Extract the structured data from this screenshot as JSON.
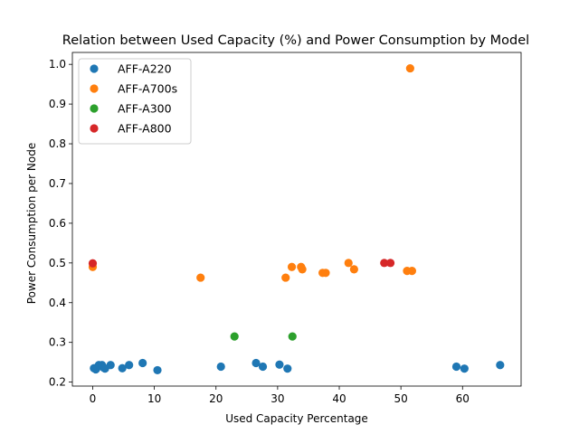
{
  "chart_data": {
    "type": "scatter",
    "title": "Relation between Used Capacity (%) and Power Consumption by Model",
    "xlabel": "Used Capacity Percentage",
    "ylabel": "Power Consumption per Node",
    "xlim": [
      -3.3,
      69.5
    ],
    "ylim": [
      0.19,
      1.03
    ],
    "xticks": [
      0,
      10,
      20,
      30,
      40,
      50,
      60
    ],
    "yticks": [
      0.2,
      0.3,
      0.4,
      0.5,
      0.6,
      0.7,
      0.8,
      0.9,
      1.0
    ],
    "grid": false,
    "legend_position": "top-left",
    "series": [
      {
        "name": "AFF-A220",
        "color": "#1f77b4",
        "points": [
          [
            0.2,
            0.235
          ],
          [
            0.5,
            0.232
          ],
          [
            0.8,
            0.238
          ],
          [
            1.0,
            0.243
          ],
          [
            1.5,
            0.243
          ],
          [
            1.8,
            0.236
          ],
          [
            2.0,
            0.234
          ],
          [
            2.9,
            0.243
          ],
          [
            4.8,
            0.235
          ],
          [
            5.9,
            0.243
          ],
          [
            8.1,
            0.248
          ],
          [
            10.5,
            0.23
          ],
          [
            20.8,
            0.239
          ],
          [
            26.5,
            0.248
          ],
          [
            27.6,
            0.239
          ],
          [
            30.3,
            0.244
          ],
          [
            31.6,
            0.234
          ],
          [
            59.0,
            0.239
          ],
          [
            60.3,
            0.234
          ],
          [
            66.1,
            0.243
          ]
        ]
      },
      {
        "name": "AFF-A700s",
        "color": "#ff7f0e",
        "points": [
          [
            0.0,
            0.49
          ],
          [
            17.5,
            0.463
          ],
          [
            31.3,
            0.463
          ],
          [
            32.3,
            0.49
          ],
          [
            33.8,
            0.49
          ],
          [
            34.0,
            0.484
          ],
          [
            37.3,
            0.475
          ],
          [
            37.8,
            0.475
          ],
          [
            41.5,
            0.5
          ],
          [
            42.4,
            0.484
          ],
          [
            51.0,
            0.48
          ],
          [
            51.8,
            0.48
          ],
          [
            51.5,
            0.99
          ]
        ]
      },
      {
        "name": "AFF-A300",
        "color": "#2ca02c",
        "points": [
          [
            23.0,
            0.315
          ],
          [
            32.4,
            0.315
          ]
        ]
      },
      {
        "name": "AFF-A800",
        "color": "#d62728",
        "points": [
          [
            0.0,
            0.499
          ],
          [
            47.3,
            0.5
          ],
          [
            48.3,
            0.5
          ]
        ]
      }
    ]
  }
}
